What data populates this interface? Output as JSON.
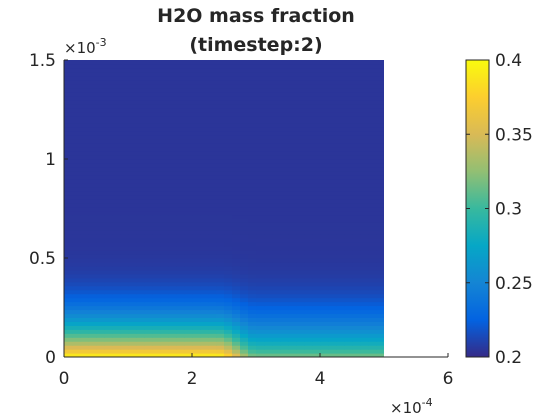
{
  "chart_data": {
    "type": "heatmap",
    "title": [
      "H2O mass fraction",
      "(timestep:2)"
    ],
    "xlabel": "",
    "ylabel": "",
    "xlim": [
      0,
      0.0006
    ],
    "ylim": [
      0,
      0.0015
    ],
    "x_ticks": [
      0,
      0.0002,
      0.0004,
      0.0006
    ],
    "x_tick_labels": [
      "0",
      "2",
      "4",
      "6"
    ],
    "y_ticks": [
      0,
      0.0005,
      0.001,
      0.0015
    ],
    "y_tick_labels": [
      "0",
      "0.5",
      "1",
      "1.5"
    ],
    "x_multiplier": {
      "base": "×10",
      "exp": "-4"
    },
    "y_multiplier": {
      "base": "×10",
      "exp": "-3"
    },
    "data_extent": {
      "x": [
        0,
        0.0005
      ],
      "y": [
        0,
        0.0015
      ]
    },
    "colormap": "parula",
    "colorbar": {
      "range": [
        0.2,
        0.4
      ],
      "ticks": [
        0.2,
        0.25,
        0.3,
        0.35,
        0.4
      ],
      "tick_labels": [
        "0.2",
        "0.25",
        "0.3",
        "0.35",
        "0.4"
      ],
      "colors": [
        "#352a87",
        "#0363e1",
        "#1485d4",
        "#06a7c6",
        "#38b99e",
        "#92bf73",
        "#d9ba56",
        "#fcce2e",
        "#f9fb0e"
      ]
    },
    "field": {
      "description_of_values": "H2O mass fraction over x in [0, 5e-4] and y in [0, 1.5e-3]",
      "far_field_value": 0.205,
      "near_wall_value": 0.4,
      "cutoff_x": 0.00027,
      "transition_width_x": 3e-05,
      "boundary_layer_height": 9e-05,
      "baseline_mid_value": 0.32
    }
  }
}
